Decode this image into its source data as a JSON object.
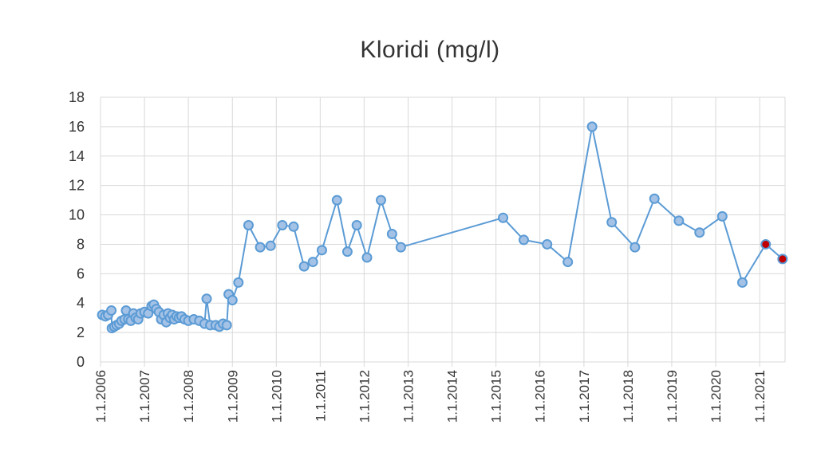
{
  "chart_data": {
    "type": "line",
    "title": "Kloridi  (mg/l)",
    "xlabel": "",
    "ylabel": "",
    "ylim": [
      0,
      18
    ],
    "yticks": [
      0,
      2,
      4,
      6,
      8,
      10,
      12,
      14,
      16,
      18
    ],
    "xlim": [
      "2006-01-01",
      "2021-07-31"
    ],
    "xticks": [
      "1.1.2006",
      "1.1.2007",
      "1.1.2008",
      "1.1.2009",
      "1.1.2010",
      "1.1.2011",
      "1.1.2012",
      "1.1.2013",
      "1.1.2014",
      "1.1.2015",
      "1.1.2016",
      "1.1.2017",
      "1.1.2018",
      "1.1.2019",
      "1.1.2020",
      "1.1.2021"
    ],
    "grid": true,
    "colors": {
      "line": "#5b9bd5",
      "marker_fill": "#a4c2e6",
      "marker_edge": "#5b9bd5",
      "highlight_fill": "#c00000",
      "grid": "#d9d9d9"
    },
    "series": [
      {
        "points": [
          {
            "x": "2006-01-15",
            "y": 3.2
          },
          {
            "x": "2006-02-10",
            "y": 3.1
          },
          {
            "x": "2006-03-05",
            "y": 3.2
          },
          {
            "x": "2006-04-01",
            "y": 3.5
          },
          {
            "x": "2006-04-05",
            "y": 2.3
          },
          {
            "x": "2006-04-25",
            "y": 2.4
          },
          {
            "x": "2006-05-15",
            "y": 2.5
          },
          {
            "x": "2006-06-05",
            "y": 2.6
          },
          {
            "x": "2006-06-25",
            "y": 2.8
          },
          {
            "x": "2006-07-20",
            "y": 2.9
          },
          {
            "x": "2006-08-01",
            "y": 3.5
          },
          {
            "x": "2006-08-20",
            "y": 2.9
          },
          {
            "x": "2006-09-10",
            "y": 2.8
          },
          {
            "x": "2006-10-01",
            "y": 3.3
          },
          {
            "x": "2006-10-20",
            "y": 3.0
          },
          {
            "x": "2006-11-10",
            "y": 2.9
          },
          {
            "x": "2006-12-01",
            "y": 3.3
          },
          {
            "x": "2007-01-01",
            "y": 3.4
          },
          {
            "x": "2007-02-01",
            "y": 3.3
          },
          {
            "x": "2007-03-01",
            "y": 3.8
          },
          {
            "x": "2007-03-20",
            "y": 3.9
          },
          {
            "x": "2007-04-10",
            "y": 3.6
          },
          {
            "x": "2007-05-01",
            "y": 3.4
          },
          {
            "x": "2007-05-20",
            "y": 2.9
          },
          {
            "x": "2007-06-10",
            "y": 3.2
          },
          {
            "x": "2007-07-01",
            "y": 2.7
          },
          {
            "x": "2007-07-15",
            "y": 3.3
          },
          {
            "x": "2007-08-01",
            "y": 3.0
          },
          {
            "x": "2007-08-20",
            "y": 3.2
          },
          {
            "x": "2007-09-05",
            "y": 2.9
          },
          {
            "x": "2007-09-25",
            "y": 3.1
          },
          {
            "x": "2007-10-15",
            "y": 3.0
          },
          {
            "x": "2007-11-05",
            "y": 3.1
          },
          {
            "x": "2007-12-01",
            "y": 2.9
          },
          {
            "x": "2008-01-01",
            "y": 2.8
          },
          {
            "x": "2008-02-15",
            "y": 2.9
          },
          {
            "x": "2008-04-01",
            "y": 2.8
          },
          {
            "x": "2008-05-15",
            "y": 2.6
          },
          {
            "x": "2008-06-01",
            "y": 4.3
          },
          {
            "x": "2008-07-01",
            "y": 2.5
          },
          {
            "x": "2008-08-15",
            "y": 2.5
          },
          {
            "x": "2008-09-15",
            "y": 2.4
          },
          {
            "x": "2008-10-15",
            "y": 2.6
          },
          {
            "x": "2008-11-15",
            "y": 2.5
          },
          {
            "x": "2008-12-01",
            "y": 4.6
          },
          {
            "x": "2009-01-01",
            "y": 4.2
          },
          {
            "x": "2009-02-20",
            "y": 5.4
          },
          {
            "x": "2009-05-15",
            "y": 9.3
          },
          {
            "x": "2009-08-20",
            "y": 7.8
          },
          {
            "x": "2009-11-15",
            "y": 7.9
          },
          {
            "x": "2010-02-20",
            "y": 9.3
          },
          {
            "x": "2010-05-25",
            "y": 9.2
          },
          {
            "x": "2010-08-20",
            "y": 6.5
          },
          {
            "x": "2010-11-01",
            "y": 6.8
          },
          {
            "x": "2011-01-15",
            "y": 7.6
          },
          {
            "x": "2011-05-20",
            "y": 11.0
          },
          {
            "x": "2011-08-15",
            "y": 7.5
          },
          {
            "x": "2011-11-01",
            "y": 9.3
          },
          {
            "x": "2012-01-25",
            "y": 7.1
          },
          {
            "x": "2012-05-20",
            "y": 11.0
          },
          {
            "x": "2012-08-20",
            "y": 8.7
          },
          {
            "x": "2012-11-01",
            "y": 7.8
          },
          {
            "x": "2015-03-01",
            "y": 9.8
          },
          {
            "x": "2015-08-20",
            "y": 8.3
          },
          {
            "x": "2016-03-01",
            "y": 8.0
          },
          {
            "x": "2016-08-20",
            "y": 6.8
          },
          {
            "x": "2017-03-10",
            "y": 16.0
          },
          {
            "x": "2017-08-20",
            "y": 9.5
          },
          {
            "x": "2018-03-01",
            "y": 7.8
          },
          {
            "x": "2018-08-10",
            "y": 11.1
          },
          {
            "x": "2019-03-01",
            "y": 9.6
          },
          {
            "x": "2019-08-20",
            "y": 8.8
          },
          {
            "x": "2020-02-25",
            "y": 9.9
          },
          {
            "x": "2020-08-10",
            "y": 5.4
          },
          {
            "x": "2021-02-20",
            "y": 8.0,
            "highlight": true
          },
          {
            "x": "2021-07-10",
            "y": 7.0,
            "highlight": true
          }
        ]
      }
    ]
  }
}
